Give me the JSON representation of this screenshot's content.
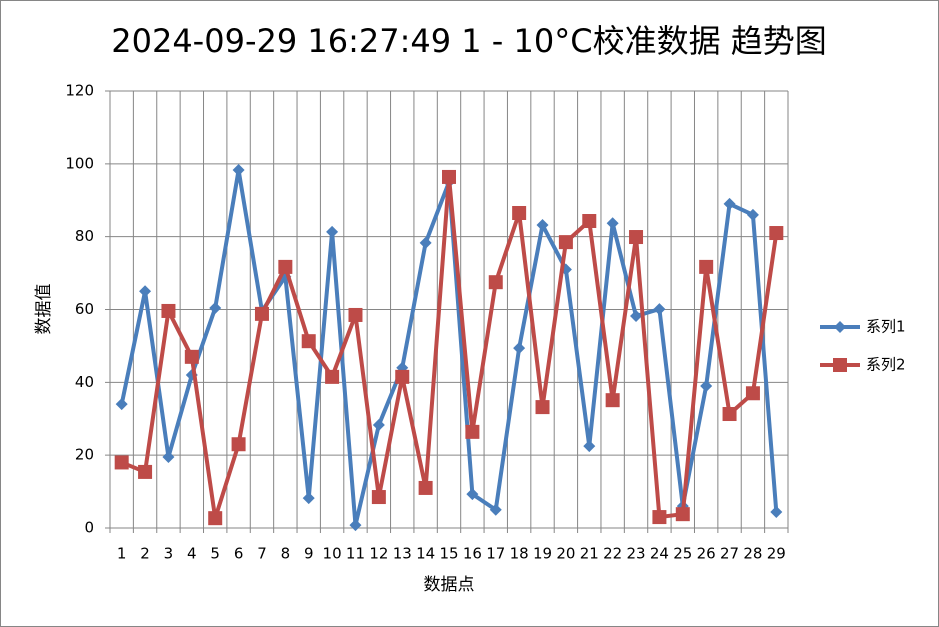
{
  "chart_data": {
    "type": "line",
    "title": "2024-09-29 16:27:49 1 - 10°C校准数据 趋势图",
    "x_label": "数据点",
    "y_label": "数据值",
    "categories": [
      "1",
      "2",
      "3",
      "4",
      "5",
      "6",
      "7",
      "8",
      "9",
      "10",
      "11",
      "12",
      "13",
      "14",
      "15",
      "16",
      "17",
      "18",
      "19",
      "20",
      "21",
      "22",
      "23",
      "24",
      "25",
      "26",
      "27",
      "28",
      "29"
    ],
    "series": [
      {
        "name": "系列1",
        "color": "#4a7ebb",
        "marker": "diamond",
        "values": [
          34,
          65,
          19.5,
          42,
          60.4,
          98.3,
          59.6,
          69,
          8.2,
          81.3,
          0.8,
          28.3,
          44,
          78.3,
          95,
          9.3,
          5,
          49.4,
          83.2,
          71,
          22.5,
          83.7,
          58.2,
          60.1,
          6,
          39,
          89,
          86,
          4.4
        ]
      },
      {
        "name": "系列2",
        "color": "#be4b48",
        "marker": "square",
        "values": [
          18,
          15.4,
          59.6,
          47,
          2.7,
          23,
          58.8,
          71.7,
          51.3,
          41.5,
          58.5,
          8.5,
          41.5,
          11,
          96.4,
          26.4,
          67.5,
          86.5,
          33.2,
          78.5,
          84.3,
          35.1,
          79.9,
          3,
          3.8,
          71.7,
          31.3,
          37,
          81
        ]
      }
    ],
    "ylim": [
      0,
      120
    ],
    "yticks": [
      0,
      20,
      40,
      60,
      80,
      100,
      120
    ],
    "grid": true,
    "legend": "right"
  }
}
